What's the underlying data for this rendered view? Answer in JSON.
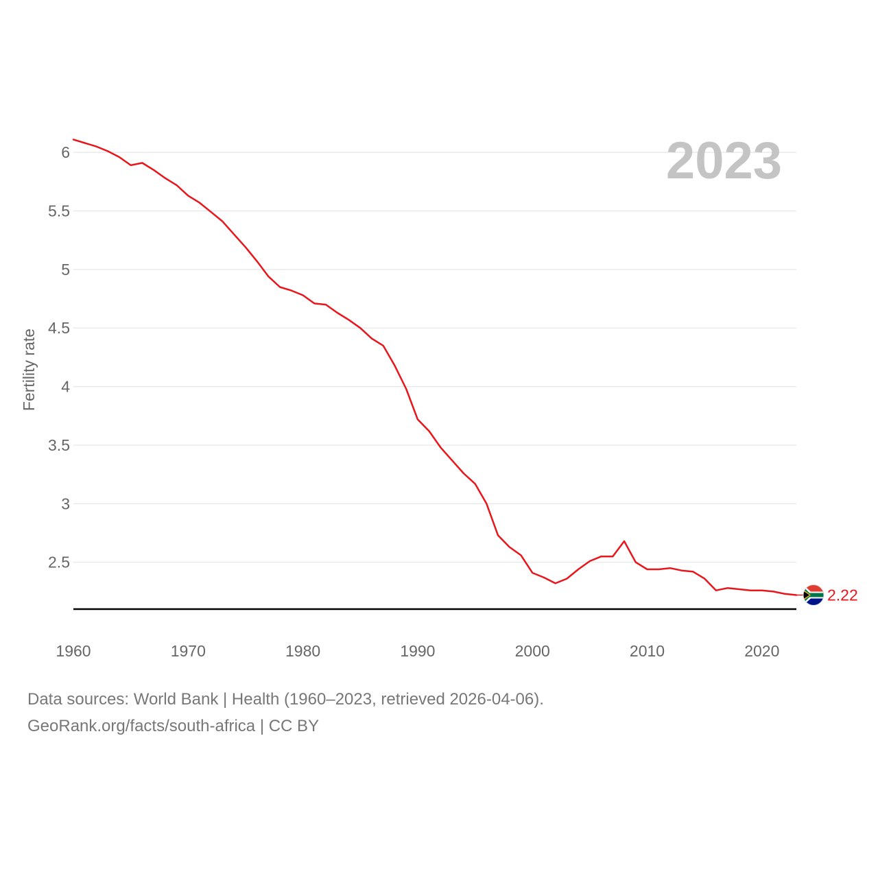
{
  "colors": {
    "series": "#e8161b",
    "grid": "#e6e6e6",
    "baseline": "#000000",
    "year_label": "#c4c4c4",
    "flag_red": "#e03c31",
    "flag_blue": "#001489",
    "flag_green": "#007749",
    "flag_gold": "#ffb81c"
  },
  "chart_data": {
    "type": "line",
    "title": "",
    "current_year_label": "2023",
    "xlabel": "",
    "ylabel": "Fertility rate",
    "xlim": [
      1960,
      2023
    ],
    "ylim": [
      2.1,
      6.2
    ],
    "x_ticks": [
      1960,
      1970,
      1980,
      1990,
      2000,
      2010,
      2020
    ],
    "x_tick_labels": [
      "1960",
      "1970",
      "1980",
      "1990",
      "2000",
      "2010",
      "2020"
    ],
    "y_ticks": [
      2.5,
      3,
      3.5,
      4,
      4.5,
      5,
      5.5,
      6
    ],
    "y_tick_labels": [
      "2.5",
      "3",
      "3.5",
      "4",
      "4.5",
      "5",
      "5.5",
      "6"
    ],
    "grid": true,
    "icon": "south-africa-flag-icon",
    "series": [
      {
        "name": "South Africa",
        "end_label": "2.22",
        "x": [
          1960,
          1961,
          1962,
          1963,
          1964,
          1965,
          1966,
          1967,
          1968,
          1969,
          1970,
          1971,
          1972,
          1973,
          1974,
          1975,
          1976,
          1977,
          1978,
          1979,
          1980,
          1981,
          1982,
          1983,
          1984,
          1985,
          1986,
          1987,
          1988,
          1989,
          1990,
          1991,
          1992,
          1993,
          1994,
          1995,
          1996,
          1997,
          1998,
          1999,
          2000,
          2001,
          2002,
          2003,
          2004,
          2005,
          2006,
          2007,
          2008,
          2009,
          2010,
          2011,
          2012,
          2013,
          2014,
          2015,
          2016,
          2017,
          2018,
          2019,
          2020,
          2021,
          2022,
          2023
        ],
        "values": [
          6.11,
          6.08,
          6.05,
          6.01,
          5.96,
          5.89,
          5.91,
          5.85,
          5.78,
          5.72,
          5.63,
          5.57,
          5.49,
          5.41,
          5.3,
          5.19,
          5.07,
          4.94,
          4.85,
          4.82,
          4.78,
          4.71,
          4.7,
          4.63,
          4.57,
          4.5,
          4.41,
          4.35,
          4.18,
          3.98,
          3.72,
          3.62,
          3.48,
          3.37,
          3.26,
          3.17,
          3.0,
          2.73,
          2.63,
          2.56,
          2.41,
          2.37,
          2.32,
          2.36,
          2.44,
          2.51,
          2.55,
          2.55,
          2.68,
          2.5,
          2.44,
          2.44,
          2.45,
          2.43,
          2.42,
          2.36,
          2.26,
          2.28,
          2.27,
          2.26,
          2.26,
          2.25,
          2.23,
          2.22
        ]
      }
    ]
  },
  "footer": {
    "sources": "Data sources: World Bank | Health (1960–2023, retrieved 2026-04-06).",
    "credit": "GeoRank.org/facts/south-africa | CC BY"
  }
}
